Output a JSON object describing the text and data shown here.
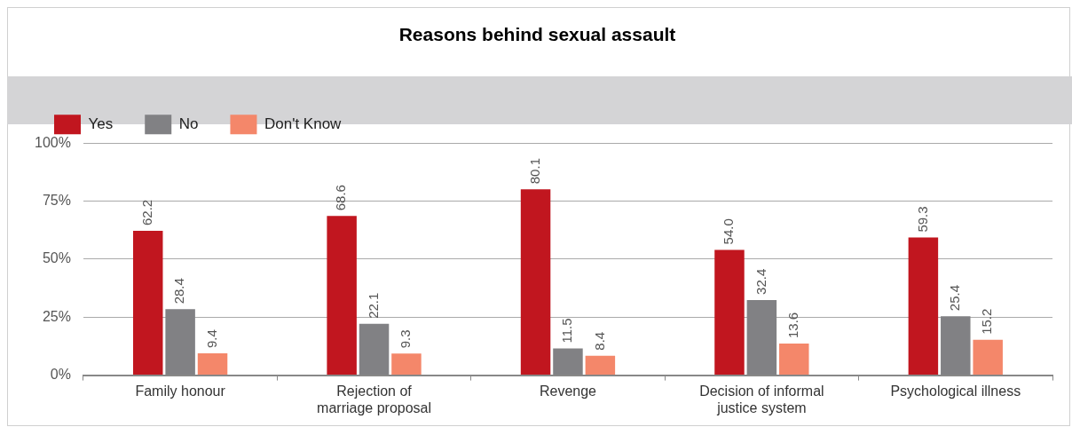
{
  "chart_data": {
    "type": "bar",
    "title": "Reasons behind sexual assault",
    "categories": [
      "Family honour",
      "Rejection of\nmarriage proposal",
      "Revenge",
      "Decision of informal\njustice system",
      "Psychological illness"
    ],
    "series": [
      {
        "name": "Yes",
        "color": "#c1161f",
        "values": [
          62.2,
          68.6,
          80.1,
          54.0,
          59.3
        ]
      },
      {
        "name": "No",
        "color": "#818184",
        "values": [
          28.4,
          22.1,
          11.5,
          32.4,
          25.4
        ]
      },
      {
        "name": "Don't Know",
        "color": "#f4876a",
        "values": [
          9.4,
          9.3,
          8.4,
          13.6,
          15.2
        ]
      }
    ],
    "value_labels": [
      [
        "62.2",
        "68.6",
        "80.1",
        "54.0",
        "59.3"
      ],
      [
        "28.4",
        "22.1",
        "11.5",
        "32.4",
        "25.4"
      ],
      [
        "9.4",
        "9.3",
        "8.4",
        "13.6",
        "15.2"
      ]
    ],
    "ylim": [
      0,
      100
    ],
    "yticks": [
      {
        "value": 0,
        "label": "0%"
      },
      {
        "value": 25,
        "label": "25%"
      },
      {
        "value": 50,
        "label": "50%"
      },
      {
        "value": 75,
        "label": "75%"
      },
      {
        "value": 100,
        "label": "100%"
      }
    ],
    "grid": "y",
    "legend": "top left"
  }
}
